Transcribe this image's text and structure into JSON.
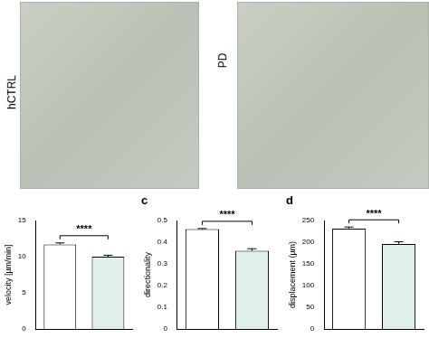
{
  "images": [
    {
      "label": "hCTRL"
    },
    {
      "label": "PD"
    }
  ],
  "chart_data": [
    {
      "type": "bar",
      "categories": [
        null,
        null
      ],
      "values": [
        11.7,
        10.0
      ],
      "errors": [
        0.2,
        0.2
      ],
      "colors": [
        "#ffffff",
        "#dff0ea"
      ],
      "ylabel": "velocity [µm/min]",
      "ylim": [
        0,
        15
      ],
      "yticks": [
        0,
        5,
        10,
        15
      ],
      "grid": false,
      "tick_labels": "y",
      "annotations": [
        "****"
      ]
    },
    {
      "type": "bar",
      "title": "c",
      "categories": [
        null,
        null
      ],
      "values": [
        0.46,
        0.36
      ],
      "errors": [
        0.003,
        0.01
      ],
      "colors": [
        "#ffffff",
        "#dff0ea"
      ],
      "ylabel": "directionality",
      "ylim": [
        0,
        0.5
      ],
      "yticks": [
        0,
        0.1,
        0.2,
        0.3,
        0.4,
        0.5
      ],
      "grid": false,
      "tick_labels": "y",
      "annotations": [
        "****"
      ]
    },
    {
      "type": "bar",
      "title": "d",
      "categories": [
        null,
        null
      ],
      "values": [
        231,
        196
      ],
      "errors": [
        4,
        5
      ],
      "colors": [
        "#ffffff",
        "#dff0ea"
      ],
      "ylabel": "displacement (µm)",
      "ylim": [
        0,
        250
      ],
      "yticks": [
        0,
        50,
        100,
        150,
        200,
        250
      ],
      "grid": false,
      "tick_labels": "y",
      "annotations": [
        "****"
      ]
    }
  ]
}
